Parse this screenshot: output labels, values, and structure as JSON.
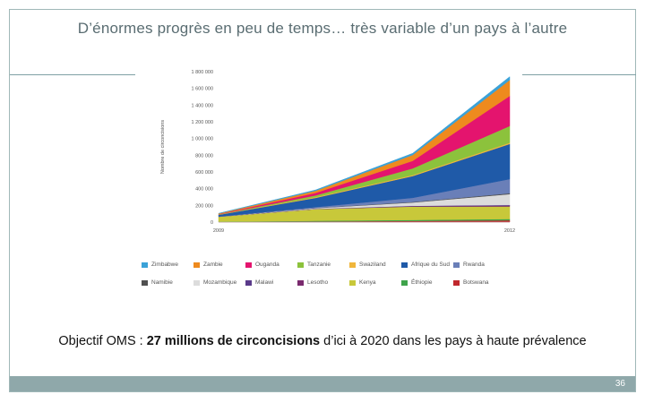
{
  "slide": {
    "title": "D’énormes progrès en peu de temps… très variable d’un pays à l’autre",
    "objective_prefix": "Objectif OMS : ",
    "objective_bold": "27 millions de circoncisions",
    "objective_suffix": " d’ici à 2020 dans les pays à haute prévalence",
    "page_number": "36"
  },
  "chart_data": {
    "type": "area",
    "stacked": true,
    "title": "",
    "xlabel": "",
    "ylabel": "Nombre de circoncisions",
    "ylim": [
      0,
      1800000
    ],
    "y_ticks": [
      0,
      200000,
      400000,
      600000,
      800000,
      1000000,
      1200000,
      1400000,
      1600000,
      1800000
    ],
    "y_tick_labels": [
      "0",
      "200 000",
      "400 000",
      "600 000",
      "800 000",
      "1 000 000",
      "1 200 000",
      "1 400 000",
      "1 600 000",
      "1 800 000"
    ],
    "x": [
      2009,
      2010,
      2011,
      2012
    ],
    "x_tick_labels": [
      "2009",
      "2012"
    ],
    "legend_position": "bottom",
    "series": [
      {
        "name": "Botswana",
        "color": "#c0282d",
        "values": [
          2000,
          8000,
          14000,
          22000
        ]
      },
      {
        "name": "Éthiopie",
        "color": "#3ea34b",
        "values": [
          3000,
          8000,
          12000,
          15000
        ]
      },
      {
        "name": "Kenya",
        "color": "#c8c83a",
        "values": [
          60000,
          140000,
          160000,
          150000
        ]
      },
      {
        "name": "Lesotho",
        "color": "#7a2a6e",
        "values": [
          0,
          1000,
          4000,
          10000
        ]
      },
      {
        "name": "Malawi",
        "color": "#5a3a8a",
        "values": [
          0,
          2000,
          5000,
          8000
        ]
      },
      {
        "name": "Mozambique",
        "color": "#dcdcdc",
        "values": [
          1000,
          8000,
          40000,
          130000
        ]
      },
      {
        "name": "Namibie",
        "color": "#505050",
        "values": [
          0,
          3000,
          6000,
          10000
        ]
      },
      {
        "name": "Rwanda",
        "color": "#6a7fb8",
        "values": [
          1000,
          10000,
          50000,
          170000
        ]
      },
      {
        "name": "Afrique du Sud",
        "color": "#1f5aa8",
        "values": [
          20000,
          110000,
          260000,
          420000
        ]
      },
      {
        "name": "Swaziland",
        "color": "#f0b63c",
        "values": [
          3000,
          10000,
          12000,
          15000
        ]
      },
      {
        "name": "Tanzanie",
        "color": "#8cc23c",
        "values": [
          2000,
          20000,
          80000,
          200000
        ]
      },
      {
        "name": "Ouganda",
        "color": "#e4146e",
        "values": [
          3000,
          30000,
          90000,
          360000
        ]
      },
      {
        "name": "Zambie",
        "color": "#ee8a1e",
        "values": [
          8000,
          25000,
          70000,
          190000
        ]
      },
      {
        "name": "Zimbabwe",
        "color": "#3ba2d8",
        "values": [
          2000,
          10000,
          20000,
          40000
        ]
      }
    ],
    "legend_rows": [
      [
        "Zimbabwe",
        "Zambie",
        "Ouganda",
        "Tanzanie",
        "Swaziland",
        "Afrique du Sud",
        "Rwanda"
      ],
      [
        "Namibie",
        "Mozambique",
        "Malawi",
        "Lesotho",
        "Kenya",
        "Éthiopie",
        "Botswana"
      ]
    ]
  }
}
